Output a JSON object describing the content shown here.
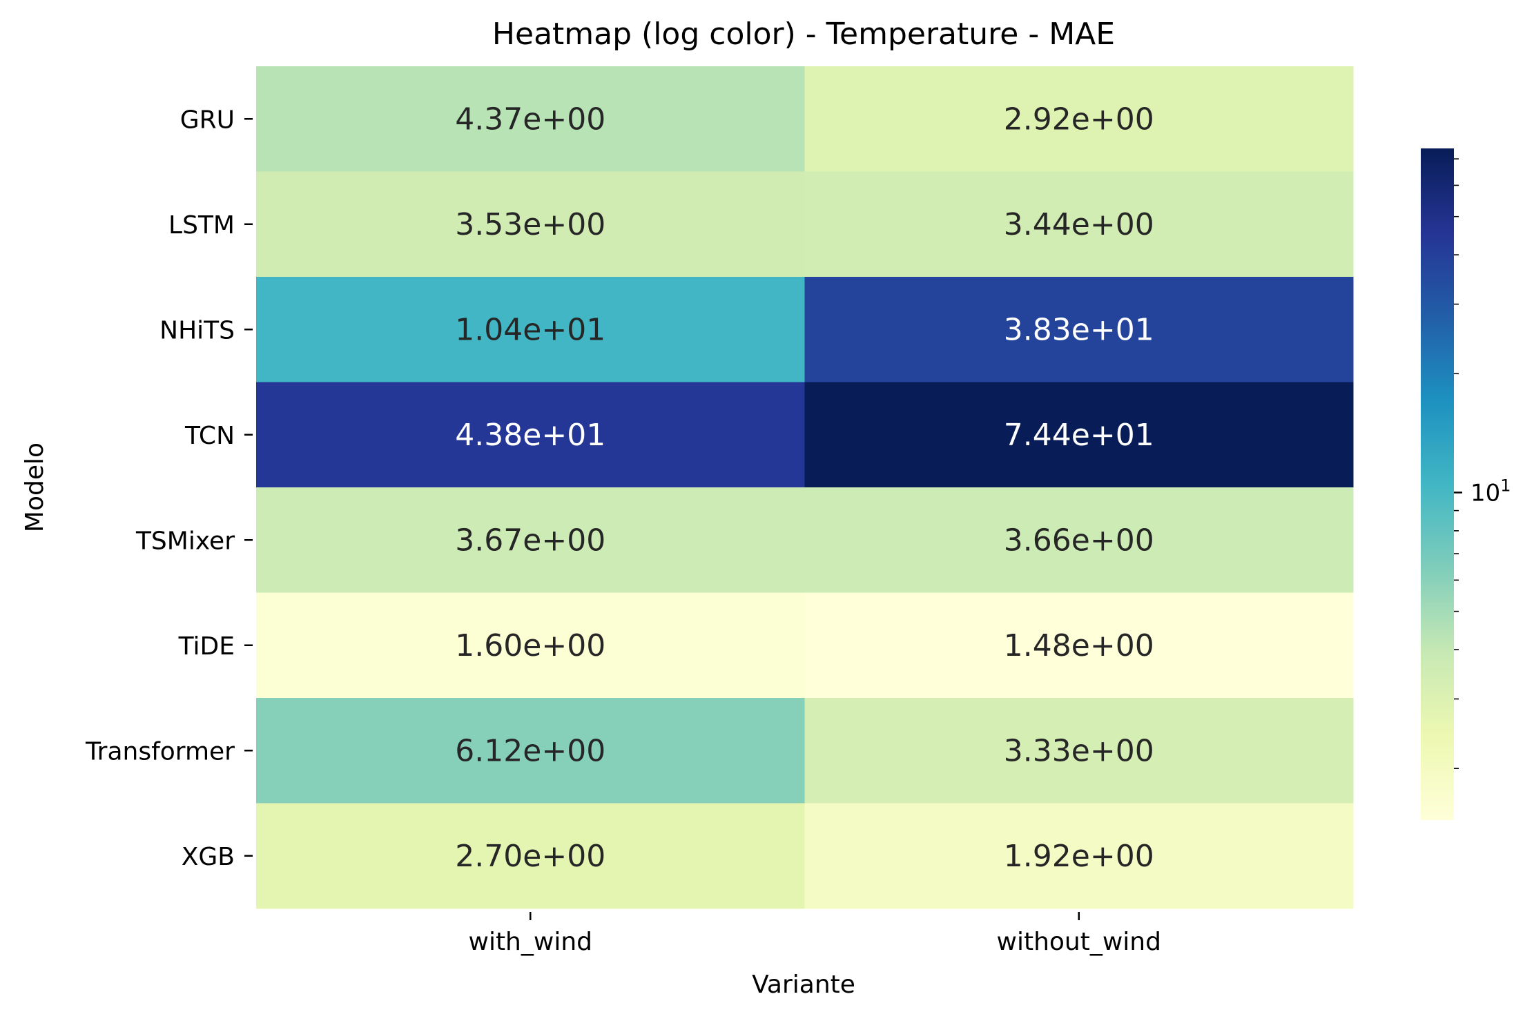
{
  "chart_data": {
    "type": "heatmap",
    "title": "Heatmap (log color) - Temperature - MAE",
    "xlabel": "Variante",
    "ylabel": "Modelo",
    "x_categories": [
      "with_wind",
      "without_wind"
    ],
    "y_categories": [
      "GRU",
      "LSTM",
      "NHiTS",
      "TCN",
      "TSMixer",
      "TiDE",
      "Transformer",
      "XGB"
    ],
    "values": [
      [
        4.37,
        2.92
      ],
      [
        3.53,
        3.44
      ],
      [
        10.4,
        38.3
      ],
      [
        43.8,
        74.4
      ],
      [
        3.67,
        3.66
      ],
      [
        1.6,
        1.48
      ],
      [
        6.12,
        3.33
      ],
      [
        2.7,
        1.92
      ]
    ],
    "cell_labels": [
      [
        "4.37e+00",
        "2.92e+00"
      ],
      [
        "3.53e+00",
        "3.44e+00"
      ],
      [
        "1.04e+01",
        "3.83e+01"
      ],
      [
        "4.38e+01",
        "7.44e+01"
      ],
      [
        "3.67e+00",
        "3.66e+00"
      ],
      [
        "1.60e+00",
        "1.48e+00"
      ],
      [
        "6.12e+00",
        "3.33e+00"
      ],
      [
        "2.70e+00",
        "1.92e+00"
      ]
    ],
    "colormap": "YlGnBu",
    "color_scale": "log",
    "color_range": [
      1.48,
      74.4
    ],
    "colorbar": {
      "tick_label": "10",
      "tick_label_exponent": "1",
      "tick_value": 10
    },
    "text_colors": {
      "light": "#ffffff",
      "dark": "#262626"
    },
    "grid": false,
    "legend": "colorbar right"
  }
}
